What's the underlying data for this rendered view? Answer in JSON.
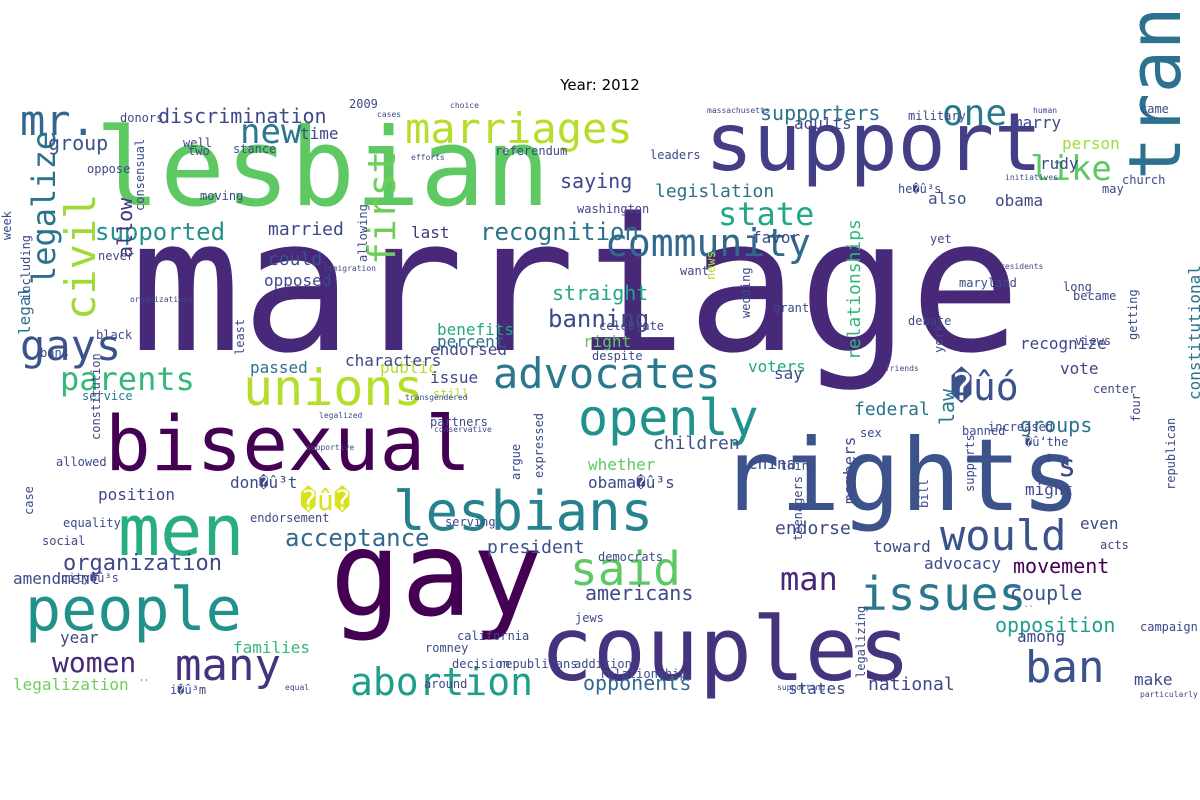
{
  "title": "Year: 2012",
  "words": [
    {
      "text": "marriage",
      "color": "#482878"
    },
    {
      "text": "lesbian",
      "color": "#5ec962"
    },
    {
      "text": "support",
      "color": "#433e85"
    },
    {
      "text": "gay",
      "color": "#440154"
    },
    {
      "text": "couples",
      "color": "#46337e"
    },
    {
      "text": "rights",
      "color": "#3b528b"
    },
    {
      "text": "bisexual",
      "color": "#440154"
    },
    {
      "text": "people",
      "color": "#21918c"
    },
    {
      "text": "men",
      "color": "#27ad81"
    },
    {
      "text": "marriages",
      "color": "#b5de2b"
    },
    {
      "text": "transgender",
      "color": "#2c728e"
    },
    {
      "text": "openly",
      "color": "#21918c"
    },
    {
      "text": "unions",
      "color": "#b5de2b"
    },
    {
      "text": "lesbians",
      "color": "#26828e"
    },
    {
      "text": "community",
      "color": "#31688e"
    },
    {
      "text": "said",
      "color": "#5ec962"
    },
    {
      "text": "advocates",
      "color": "#2a788e"
    },
    {
      "text": "gays",
      "color": "#3b528b"
    },
    {
      "text": "civil",
      "color": "#a0da39"
    },
    {
      "text": "first",
      "color": "#6ece58"
    },
    {
      "text": "legalize",
      "color": "#2c728e"
    },
    {
      "text": "mr.",
      "color": "#31688e"
    },
    {
      "text": "new",
      "color": "#2a788e"
    },
    {
      "text": "one",
      "color": "#2a788e"
    },
    {
      "text": "like",
      "color": "#5ec962"
    },
    {
      "text": "would",
      "color": "#3b528b"
    },
    {
      "text": "issues",
      "color": "#2a788e"
    },
    {
      "text": "ban",
      "color": "#3b528b"
    },
    {
      "text": "parents",
      "color": "#35b779"
    },
    {
      "text": "many",
      "color": "#46337e"
    },
    {
      "text": "women",
      "color": "#482878"
    },
    {
      "text": "abortion",
      "color": "#1f9e89"
    },
    {
      "text": "state",
      "color": "#22a884"
    },
    {
      "text": "�ûó",
      "color": "#3b528b"
    },
    {
      "text": "�û�",
      "color": "#d8e219"
    },
    {
      "text": "recognition",
      "color": "#2c728e"
    },
    {
      "text": "supported",
      "color": "#21918c"
    },
    {
      "text": "acceptance",
      "color": "#31688e"
    },
    {
      "text": "man",
      "color": "#482878"
    },
    {
      "text": "discrimination",
      "color": "#3e4989"
    },
    {
      "text": "supporters",
      "color": "#2c728e"
    },
    {
      "text": "group",
      "color": "#3b528b"
    },
    {
      "text": "allow",
      "color": "#46337e"
    },
    {
      "text": "saying",
      "color": "#3e4989"
    },
    {
      "text": "legislation",
      "color": "#2c728e"
    },
    {
      "text": "banning",
      "color": "#3e4989"
    },
    {
      "text": "straight",
      "color": "#22a884"
    },
    {
      "text": "organization",
      "color": "#3e4989"
    },
    {
      "text": "opponents",
      "color": "#31688e"
    },
    {
      "text": "americans",
      "color": "#3e4989"
    },
    {
      "text": "opposition",
      "color": "#1f9e89"
    },
    {
      "text": "couple",
      "color": "#3b528b"
    },
    {
      "text": "movement",
      "color": "#440154"
    },
    {
      "text": "groups",
      "color": "#2c728e"
    },
    {
      "text": "law",
      "color": "#2a788e"
    },
    {
      "text": "federal",
      "color": "#2c728e"
    },
    {
      "text": "children",
      "color": "#3b528b"
    },
    {
      "text": "married",
      "color": "#3e4989"
    },
    {
      "text": "endorse",
      "color": "#3e4989"
    },
    {
      "text": "president",
      "color": "#3b528b"
    },
    {
      "text": "national",
      "color": "#3e4989"
    },
    {
      "text": "relationships",
      "color": "#35b779"
    },
    {
      "text": "constitutional",
      "color": "#2c728e"
    },
    {
      "text": "legal",
      "color": "#2c728e"
    },
    {
      "text": "could",
      "color": "#3b528b"
    },
    {
      "text": "time",
      "color": "#3e4989"
    },
    {
      "text": "last",
      "color": "#46337e"
    },
    {
      "text": "also",
      "color": "#3b528b"
    },
    {
      "text": "obama",
      "color": "#3e4989"
    },
    {
      "text": "favor",
      "color": "#3e4989"
    },
    {
      "text": "marry",
      "color": "#3e4989"
    },
    {
      "text": "rudy",
      "color": "#3e4989"
    },
    {
      "text": "person",
      "color": "#a0da39"
    },
    {
      "text": "recognize",
      "color": "#3e4989"
    },
    {
      "text": "vote",
      "color": "#3e4989"
    },
    {
      "text": "public",
      "color": "#b5de2b"
    },
    {
      "text": "issue",
      "color": "#3e4989"
    },
    {
      "text": "right",
      "color": "#5ec962"
    },
    {
      "text": "percent",
      "color": "#2c728e"
    },
    {
      "text": "benefits",
      "color": "#22a884"
    },
    {
      "text": "endorsed",
      "color": "#3e4989"
    },
    {
      "text": "opposed",
      "color": "#3e4989"
    },
    {
      "text": "passed",
      "color": "#2c728e"
    },
    {
      "text": "families",
      "color": "#35b779"
    },
    {
      "text": "amendment",
      "color": "#3e4989"
    },
    {
      "text": "legalization",
      "color": "#6ece58"
    },
    {
      "text": "year",
      "color": "#3e4989"
    },
    {
      "text": "voters",
      "color": "#22a884"
    },
    {
      "text": "members",
      "color": "#3e4989"
    },
    {
      "text": "advocacy",
      "color": "#3e4989"
    },
    {
      "text": "among",
      "color": "#3e4989"
    },
    {
      "text": "states",
      "color": "#3e4989"
    },
    {
      "text": "make",
      "color": "#3e4989"
    },
    {
      "text": "whether",
      "color": "#5ec962"
    },
    {
      "text": "obama�û³s",
      "color": "#3e4989"
    },
    {
      "text": "don�û³t",
      "color": "#3e4989"
    },
    {
      "text": "position",
      "color": "#3e4989"
    },
    {
      "text": "china",
      "color": "#3e4989"
    },
    {
      "text": "toward",
      "color": "#3e4989"
    },
    {
      "text": "might",
      "color": "#3e4989"
    },
    {
      "text": "even",
      "color": "#3e4989"
    },
    {
      "text": "sex",
      "color": "#3e4989"
    },
    {
      "text": "�û‘the",
      "color": "#3e4989"
    },
    {
      "text": "california",
      "color": "#3e4989"
    },
    {
      "text": "romney",
      "color": "#3e4989"
    },
    {
      "text": "decision",
      "color": "#3e4989"
    },
    {
      "text": "republicans",
      "color": "#3e4989"
    },
    {
      "text": "around",
      "color": "#3e4989"
    },
    {
      "text": "i�û³m",
      "color": "#3e4989"
    },
    {
      "text": "addition",
      "color": "#3e4989"
    },
    {
      "text": "jews",
      "color": "#3e4989"
    },
    {
      "text": "news",
      "color": "#b5de2b"
    },
    {
      "text": "want",
      "color": "#3e4989"
    },
    {
      "text": "say",
      "color": "#3e4989"
    },
    {
      "text": "still",
      "color": "#b5de2b"
    },
    {
      "text": "argue",
      "color": "#3e4989"
    },
    {
      "text": "service",
      "color": "#2a788e"
    },
    {
      "text": "constitution",
      "color": "#3e4989"
    },
    {
      "text": "endorsement",
      "color": "#3e4989"
    },
    {
      "text": "city�û³s",
      "color": "#3e4989"
    },
    {
      "text": "social",
      "color": "#3e4989"
    },
    {
      "text": "equality",
      "color": "#3e4989"
    },
    {
      "text": "allowed",
      "color": "#3e4989"
    },
    {
      "text": "week",
      "color": "#3e4989"
    },
    {
      "text": "including",
      "color": "#3e4989"
    },
    {
      "text": "black",
      "color": "#3e4989"
    },
    {
      "text": "bans",
      "color": "#3e4989"
    },
    {
      "text": "never",
      "color": "#3e4989"
    },
    {
      "text": "oppose",
      "color": "#3e4989"
    },
    {
      "text": "well",
      "color": "#3e4989"
    },
    {
      "text": "two",
      "color": "#3e4989"
    },
    {
      "text": "donors",
      "color": "#3e4989"
    },
    {
      "text": "2009",
      "color": "#3e4989"
    },
    {
      "text": "cases",
      "color": "#3e4989"
    },
    {
      "text": "choice",
      "color": "#3e4989"
    },
    {
      "text": "massachusetts",
      "color": "#3e4989"
    },
    {
      "text": "human",
      "color": "#3e4989"
    },
    {
      "text": "came",
      "color": "#3e4989"
    },
    {
      "text": "church",
      "color": "#3e4989"
    },
    {
      "text": "military",
      "color": "#3e4989"
    },
    {
      "text": "may",
      "color": "#3e4989"
    },
    {
      "text": "initiatives",
      "color": "#3e4989"
    },
    {
      "text": "he�û³s",
      "color": "#3e4989"
    },
    {
      "text": "yet",
      "color": "#3e4989"
    },
    {
      "text": "residents",
      "color": "#3e4989"
    },
    {
      "text": "maryland",
      "color": "#3e4989"
    },
    {
      "text": "long",
      "color": "#3e4989"
    },
    {
      "text": "became",
      "color": "#3e4989"
    },
    {
      "text": "debate",
      "color": "#3e4989"
    },
    {
      "text": "views",
      "color": "#3e4989"
    },
    {
      "text": "center",
      "color": "#3e4989"
    },
    {
      "text": "getting",
      "color": "#3e4989"
    },
    {
      "text": "four",
      "color": "#3e4989"
    },
    {
      "text": "republican",
      "color": "#3e4989"
    },
    {
      "text": "campaign",
      "color": "#3e4989"
    },
    {
      "text": "particularly",
      "color": "#3e4989"
    },
    {
      "text": "acts",
      "color": "#3e4989"
    },
    {
      "text": "banned",
      "color": "#3e4989"
    },
    {
      "text": "increased",
      "color": "#3e4989"
    },
    {
      "text": "supports",
      "color": "#3e4989"
    },
    {
      "text": "bill",
      "color": "#3e4989"
    },
    {
      "text": "think",
      "color": "#3e4989"
    },
    {
      "text": "friends",
      "color": "#3e4989"
    },
    {
      "text": "york",
      "color": "#3e4989"
    },
    {
      "text": "despite",
      "color": "#3e4989"
    },
    {
      "text": "celebrate",
      "color": "#3e4989"
    },
    {
      "text": "grant",
      "color": "#3e4989"
    },
    {
      "text": "wedding",
      "color": "#3e4989"
    },
    {
      "text": "teenagers",
      "color": "#3e4989"
    },
    {
      "text": "legalizing",
      "color": "#3e4989"
    },
    {
      "text": "supporting",
      "color": "#3e4989"
    },
    {
      "text": "relationship",
      "color": "#3e4989"
    },
    {
      "text": "democrats",
      "color": "#3e4989"
    },
    {
      "text": "serving",
      "color": "#3e4989"
    },
    {
      "text": "expressed",
      "color": "#3e4989"
    },
    {
      "text": "supportive",
      "color": "#3e4989"
    },
    {
      "text": "legalized",
      "color": "#3e4989"
    },
    {
      "text": "transgendered",
      "color": "#3e4989"
    },
    {
      "text": "conservative",
      "color": "#3e4989"
    },
    {
      "text": "partners",
      "color": "#3e4989"
    },
    {
      "text": "case",
      "color": "#3e4989"
    },
    {
      "text": "least",
      "color": "#3e4989"
    },
    {
      "text": "organizations",
      "color": "#3e4989"
    },
    {
      "text": "immigration",
      "color": "#3e4989"
    },
    {
      "text": "allowing",
      "color": "#3e4989"
    },
    {
      "text": "moving",
      "color": "#3e4989"
    },
    {
      "text": "consensual",
      "color": "#3e4989"
    },
    {
      "text": "stance",
      "color": "#3e4989"
    },
    {
      "text": "efforts",
      "color": "#3e4989"
    },
    {
      "text": "referendum",
      "color": "#3e4989"
    },
    {
      "text": "washington",
      "color": "#3e4989"
    },
    {
      "text": "leaders",
      "color": "#3e4989"
    },
    {
      "text": "characters",
      "color": "#3e4989"
    },
    {
      "text": "adults",
      "color": "#3e4989"
    },
    {
      "text": "'s",
      "color": "#3e4989"
    },
    {
      "text": "``",
      "color": "#3e4989"
    },
    {
      "text": "''",
      "color": "#3e4989"
    },
    {
      "text": "equal",
      "color": "#3e4989"
    },
    {
      "text": "partner",
      "color": "#3e4989"
    },
    {
      "text": "scored",
      "color": "#3e4989"
    }
  ]
}
